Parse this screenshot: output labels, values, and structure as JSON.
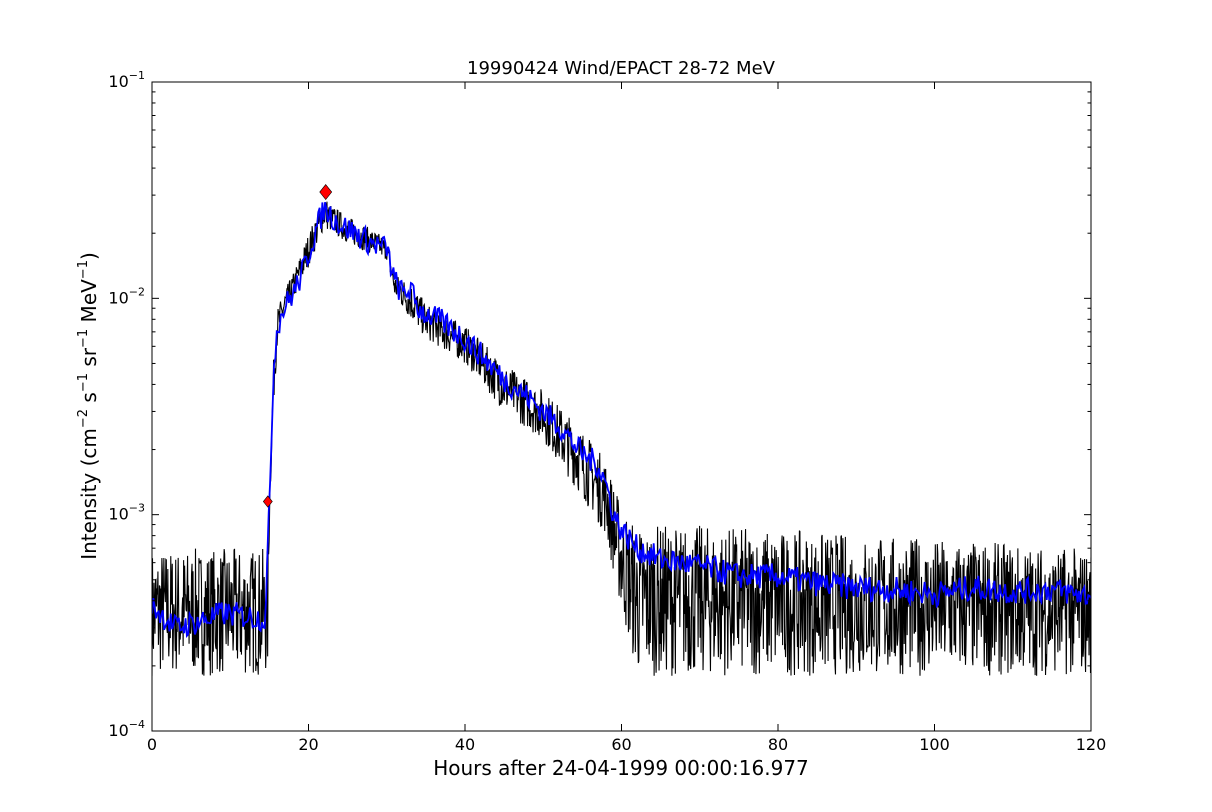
{
  "chart_data": {
    "type": "line",
    "title": "19990424 Wind/EPACT 28-72 MeV",
    "xlabel": "Hours after 24-04-1999 00:00:16.977",
    "ylabel": {
      "prefix": "Intensity (cm",
      "cm_exp": "−2",
      "s": " s",
      "s_exp": "−1",
      "sr": " sr",
      "sr_exp": "−1",
      "mev": " MeV",
      "mev_exp": "−1",
      "suffix": ")"
    },
    "x_scale": "linear",
    "y_scale": "log",
    "xlim": [
      0,
      120
    ],
    "ylim": [
      0.0001,
      0.1
    ],
    "x_ticks": [
      {
        "value": 0,
        "label": "0"
      },
      {
        "value": 20,
        "label": "20"
      },
      {
        "value": 40,
        "label": "40"
      },
      {
        "value": 60,
        "label": "60"
      },
      {
        "value": 80,
        "label": "80"
      },
      {
        "value": 100,
        "label": "100"
      },
      {
        "value": 120,
        "label": "120"
      }
    ],
    "y_ticks": [
      {
        "value": 0.0001,
        "base": "10",
        "exp": "−4"
      },
      {
        "value": 0.001,
        "base": "10",
        "exp": "−3"
      },
      {
        "value": 0.01,
        "base": "10",
        "exp": "−2"
      },
      {
        "value": 0.1,
        "base": "10",
        "exp": "−1"
      }
    ],
    "grid": false,
    "legend": "none",
    "series": [
      {
        "role": "raw",
        "color": "#000000",
        "envelope": [
          {
            "x": 0,
            "lo": 0.00018,
            "hi": 0.0007
          },
          {
            "x": 14.8,
            "lo": 0.00018,
            "hi": 0.0007
          },
          {
            "x": 15,
            "lo": 0.0009,
            "hi": 0.0014
          },
          {
            "x": 15.5,
            "lo": 0.003,
            "hi": 0.005
          },
          {
            "x": 16,
            "lo": 0.006,
            "hi": 0.009
          },
          {
            "x": 17,
            "lo": 0.0082,
            "hi": 0.011
          },
          {
            "x": 18,
            "lo": 0.0095,
            "hi": 0.013
          },
          {
            "x": 20,
            "lo": 0.014,
            "hi": 0.02
          },
          {
            "x": 22,
            "lo": 0.021,
            "hi": 0.03
          },
          {
            "x": 23,
            "lo": 0.02,
            "hi": 0.027
          },
          {
            "x": 25,
            "lo": 0.018,
            "hi": 0.024
          },
          {
            "x": 28,
            "lo": 0.016,
            "hi": 0.021
          },
          {
            "x": 30,
            "lo": 0.015,
            "hi": 0.019
          },
          {
            "x": 31,
            "lo": 0.01,
            "hi": 0.013
          },
          {
            "x": 33,
            "lo": 0.008,
            "hi": 0.012
          },
          {
            "x": 35,
            "lo": 0.0065,
            "hi": 0.0095
          },
          {
            "x": 40,
            "lo": 0.005,
            "hi": 0.0075
          },
          {
            "x": 45,
            "lo": 0.003,
            "hi": 0.005
          },
          {
            "x": 50,
            "lo": 0.0022,
            "hi": 0.0038
          },
          {
            "x": 55,
            "lo": 0.0012,
            "hi": 0.0025
          },
          {
            "x": 58,
            "lo": 0.0008,
            "hi": 0.0018
          },
          {
            "x": 60,
            "lo": 0.00035,
            "hi": 0.0011
          },
          {
            "x": 62,
            "lo": 0.00018,
            "hi": 0.0009
          },
          {
            "x": 70,
            "lo": 0.00018,
            "hi": 0.0009
          },
          {
            "x": 120,
            "lo": 0.00018,
            "hi": 0.0007
          }
        ]
      },
      {
        "role": "smoothed",
        "color": "#0000ff",
        "points": [
          [
            0,
            0.00038
          ],
          [
            3,
            0.0003
          ],
          [
            6,
            0.00032
          ],
          [
            9,
            0.00035
          ],
          [
            12,
            0.00034
          ],
          [
            14.5,
            0.00033
          ],
          [
            15,
            0.0011
          ],
          [
            15.5,
            0.0045
          ],
          [
            16,
            0.0075
          ],
          [
            17,
            0.0092
          ],
          [
            18,
            0.0105
          ],
          [
            19,
            0.0125
          ],
          [
            20,
            0.016
          ],
          [
            21,
            0.021
          ],
          [
            22,
            0.026
          ],
          [
            23,
            0.024
          ],
          [
            24,
            0.022
          ],
          [
            26,
            0.02
          ],
          [
            28,
            0.018
          ],
          [
            30,
            0.017
          ],
          [
            31,
            0.012
          ],
          [
            32,
            0.0105
          ],
          [
            33,
            0.011
          ],
          [
            34,
            0.009
          ],
          [
            35,
            0.0085
          ],
          [
            37,
            0.0078
          ],
          [
            40,
            0.0065
          ],
          [
            42,
            0.0055
          ],
          [
            45,
            0.0042
          ],
          [
            48,
            0.0035
          ],
          [
            50,
            0.003
          ],
          [
            52,
            0.0026
          ],
          [
            55,
            0.0019
          ],
          [
            57,
            0.0017
          ],
          [
            58,
            0.0014
          ],
          [
            59,
            0.001
          ],
          [
            60,
            0.00085
          ],
          [
            62,
            0.0007
          ],
          [
            65,
            0.00062
          ],
          [
            70,
            0.00058
          ],
          [
            75,
            0.00052
          ],
          [
            80,
            0.00052
          ],
          [
            85,
            0.00048
          ],
          [
            90,
            0.00046
          ],
          [
            95,
            0.00045
          ],
          [
            100,
            0.00043
          ],
          [
            105,
            0.00046
          ],
          [
            110,
            0.00044
          ],
          [
            115,
            0.00045
          ],
          [
            120,
            0.00042
          ]
        ]
      }
    ],
    "markers": [
      {
        "x": 14.8,
        "y": 0.00115,
        "color": "#ff0000",
        "size": "small"
      },
      {
        "x": 22.2,
        "y": 0.031,
        "color": "#ff0000",
        "size": "large"
      }
    ]
  }
}
